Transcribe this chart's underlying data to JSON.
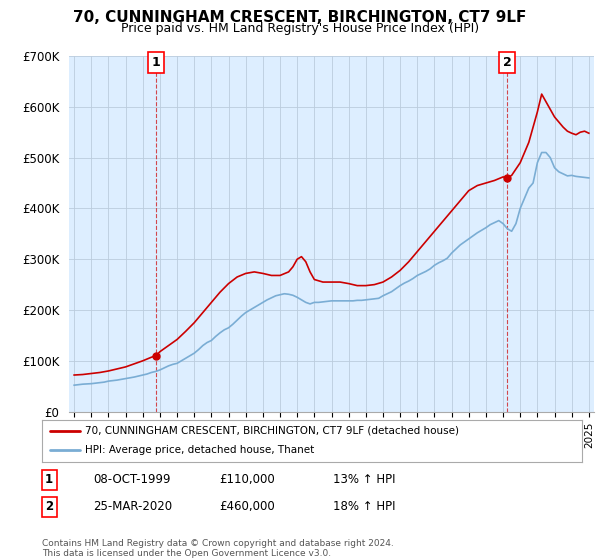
{
  "title": "70, CUNNINGHAM CRESCENT, BIRCHINGTON, CT7 9LF",
  "subtitle": "Price paid vs. HM Land Registry's House Price Index (HPI)",
  "legend_line1": "70, CUNNINGHAM CRESCENT, BIRCHINGTON, CT7 9LF (detached house)",
  "legend_line2": "HPI: Average price, detached house, Thanet",
  "footer": "Contains HM Land Registry data © Crown copyright and database right 2024.\nThis data is licensed under the Open Government Licence v3.0.",
  "transaction1": {
    "label": "1",
    "date": "08-OCT-1999",
    "price": "£110,000",
    "hpi": "13% ↑ HPI",
    "year": 1999.77
  },
  "transaction2": {
    "label": "2",
    "date": "25-MAR-2020",
    "price": "£460,000",
    "hpi": "18% ↑ HPI",
    "year": 2020.23
  },
  "ylim": [
    0,
    700000
  ],
  "xlim": [
    1994.7,
    2025.3
  ],
  "yticks": [
    0,
    100000,
    200000,
    300000,
    400000,
    500000,
    600000,
    700000
  ],
  "ytick_labels": [
    "£0",
    "£100K",
    "£200K",
    "£300K",
    "£400K",
    "£500K",
    "£600K",
    "£700K"
  ],
  "xticks": [
    1995,
    1996,
    1997,
    1998,
    1999,
    2000,
    2001,
    2002,
    2003,
    2004,
    2005,
    2006,
    2007,
    2008,
    2009,
    2010,
    2011,
    2012,
    2013,
    2014,
    2015,
    2016,
    2017,
    2018,
    2019,
    2020,
    2021,
    2022,
    2023,
    2024,
    2025
  ],
  "red_color": "#cc0000",
  "blue_color": "#7aadd4",
  "plot_bg_color": "#ddeeff",
  "bg_color": "#ffffff",
  "grid_color": "#bbccdd",
  "hpi_x": [
    1995.0,
    1995.25,
    1995.5,
    1995.75,
    1996.0,
    1996.25,
    1996.5,
    1996.75,
    1997.0,
    1997.25,
    1997.5,
    1997.75,
    1998.0,
    1998.25,
    1998.5,
    1998.75,
    1999.0,
    1999.25,
    1999.5,
    1999.75,
    2000.0,
    2000.25,
    2000.5,
    2000.75,
    2001.0,
    2001.25,
    2001.5,
    2001.75,
    2002.0,
    2002.25,
    2002.5,
    2002.75,
    2003.0,
    2003.25,
    2003.5,
    2003.75,
    2004.0,
    2004.25,
    2004.5,
    2004.75,
    2005.0,
    2005.25,
    2005.5,
    2005.75,
    2006.0,
    2006.25,
    2006.5,
    2006.75,
    2007.0,
    2007.25,
    2007.5,
    2007.75,
    2008.0,
    2008.25,
    2008.5,
    2008.75,
    2009.0,
    2009.25,
    2009.5,
    2009.75,
    2010.0,
    2010.25,
    2010.5,
    2010.75,
    2011.0,
    2011.25,
    2011.5,
    2011.75,
    2012.0,
    2012.25,
    2012.5,
    2012.75,
    2013.0,
    2013.25,
    2013.5,
    2013.75,
    2014.0,
    2014.25,
    2014.5,
    2014.75,
    2015.0,
    2015.25,
    2015.5,
    2015.75,
    2016.0,
    2016.25,
    2016.5,
    2016.75,
    2017.0,
    2017.25,
    2017.5,
    2017.75,
    2018.0,
    2018.25,
    2018.5,
    2018.75,
    2019.0,
    2019.25,
    2019.5,
    2019.75,
    2020.0,
    2020.25,
    2020.5,
    2020.75,
    2021.0,
    2021.25,
    2021.5,
    2021.75,
    2022.0,
    2022.25,
    2022.5,
    2022.75,
    2023.0,
    2023.25,
    2023.5,
    2023.75,
    2024.0,
    2024.25,
    2024.5,
    2024.75,
    2025.0
  ],
  "hpi_y": [
    52000,
    53000,
    54000,
    54500,
    55000,
    56000,
    57000,
    58000,
    60000,
    61000,
    62000,
    63500,
    65000,
    66500,
    68000,
    70000,
    72000,
    74000,
    77000,
    79000,
    82000,
    86000,
    90000,
    93000,
    95000,
    100000,
    105000,
    110000,
    115000,
    122000,
    130000,
    136000,
    140000,
    148000,
    155000,
    161000,
    165000,
    172000,
    180000,
    188000,
    195000,
    200000,
    205000,
    210000,
    215000,
    220000,
    224000,
    228000,
    230000,
    232000,
    231000,
    229000,
    225000,
    220000,
    215000,
    212000,
    215000,
    215000,
    216000,
    217000,
    218000,
    218000,
    218000,
    218000,
    218000,
    218000,
    219000,
    219000,
    220000,
    221000,
    222000,
    223000,
    228000,
    232000,
    236000,
    242000,
    248000,
    253000,
    257000,
    262000,
    268000,
    272000,
    276000,
    281000,
    288000,
    293000,
    297000,
    302000,
    312000,
    320000,
    328000,
    334000,
    340000,
    346000,
    352000,
    357000,
    362000,
    368000,
    372000,
    376000,
    370000,
    360000,
    355000,
    370000,
    400000,
    420000,
    440000,
    450000,
    490000,
    510000,
    510000,
    500000,
    480000,
    472000,
    468000,
    464000,
    465000,
    463000,
    462000,
    461000,
    460000
  ],
  "red_x": [
    1995.0,
    1995.5,
    1996.0,
    1996.5,
    1997.0,
    1997.5,
    1998.0,
    1998.5,
    1999.0,
    1999.5,
    1999.77,
    2000.0,
    2000.5,
    2001.0,
    2001.5,
    2002.0,
    2002.5,
    2003.0,
    2003.5,
    2004.0,
    2004.5,
    2005.0,
    2005.5,
    2006.0,
    2006.5,
    2007.0,
    2007.5,
    2007.75,
    2008.0,
    2008.25,
    2008.5,
    2008.75,
    2009.0,
    2009.5,
    2010.0,
    2010.5,
    2011.0,
    2011.5,
    2012.0,
    2012.5,
    2013.0,
    2013.5,
    2014.0,
    2014.5,
    2015.0,
    2015.5,
    2016.0,
    2016.5,
    2017.0,
    2017.5,
    2018.0,
    2018.5,
    2019.0,
    2019.5,
    2020.0,
    2020.23,
    2020.5,
    2021.0,
    2021.5,
    2022.0,
    2022.25,
    2022.5,
    2022.75,
    2023.0,
    2023.25,
    2023.5,
    2023.75,
    2024.0,
    2024.25,
    2024.5,
    2024.75,
    2025.0
  ],
  "red_y": [
    72000,
    73000,
    75000,
    77000,
    80000,
    84000,
    88000,
    94000,
    100000,
    107000,
    110000,
    118000,
    130000,
    142000,
    158000,
    175000,
    195000,
    215000,
    235000,
    252000,
    265000,
    272000,
    275000,
    272000,
    268000,
    268000,
    275000,
    285000,
    300000,
    305000,
    295000,
    275000,
    260000,
    255000,
    255000,
    255000,
    252000,
    248000,
    248000,
    250000,
    255000,
    265000,
    278000,
    295000,
    315000,
    335000,
    355000,
    375000,
    395000,
    415000,
    435000,
    445000,
    450000,
    455000,
    462000,
    460000,
    465000,
    490000,
    530000,
    590000,
    625000,
    610000,
    595000,
    580000,
    570000,
    560000,
    552000,
    548000,
    545000,
    550000,
    552000,
    548000
  ]
}
